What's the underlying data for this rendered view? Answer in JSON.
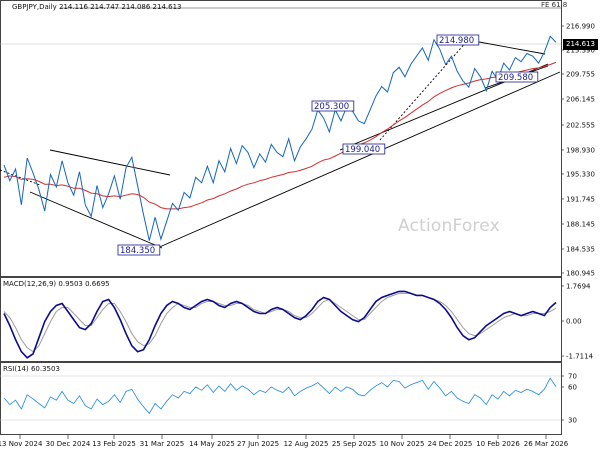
{
  "header": {
    "symbol_line": "GBPJPY,Daily  214.116 214.747 214.086 214.613",
    "macd_line": "MACD(12,26,9) 0.9503 0.6695",
    "rsi_line": "RSI(14) 60.3503"
  },
  "watermark": "ActionForex",
  "fib_label": "FE 61.8",
  "last_price": "214.613",
  "colors": {
    "price": "#1565c0",
    "ma": "#d32f2f",
    "macd": "#0b0b8c",
    "signal": "#9e9e9e",
    "rsi": "#1e88e5",
    "trend": "#000000",
    "label_border": "#1c1c8c"
  },
  "chart_data": [
    {
      "type": "line",
      "panel": "price",
      "title": "GBPJPY,Daily",
      "y_ticks": [
        "216.990",
        "213.390",
        "209.755",
        "206.145",
        "202.555",
        "198.930",
        "195.330",
        "191.745",
        "188.145",
        "184.535",
        "180.945"
      ],
      "ylim": [
        180.945,
        216.99
      ],
      "x_ticks": [
        "13 Nov 2024",
        "30 Dec 2024",
        "13 Feb 2025",
        "31 Mar 2025",
        "14 May 2025",
        "27 Jun 2025",
        "12 Aug 2025",
        "25 Sep 2025",
        "10 Nov 2025",
        "24 Dec 2025",
        "10 Feb 2026",
        "26 Mar 2026"
      ],
      "series": [
        {
          "values": [
            196.8,
            194.5,
            196.2,
            191.0,
            197.8,
            195.6,
            193.2,
            190.1,
            195.4,
            193.6,
            197.4,
            194.2,
            192.4,
            195.8,
            191.0,
            189.3,
            193.8,
            190.6,
            192.6,
            195.2,
            191.8,
            196.4,
            197.9,
            193.8,
            189.6,
            185.8,
            189.2,
            186.0,
            188.6,
            191.2,
            190.2,
            192.8,
            192.0,
            195.0,
            194.2,
            196.6,
            194.2,
            197.4,
            195.8,
            199.2,
            197.0,
            199.6,
            198.6,
            196.4,
            198.4,
            197.2,
            199.8,
            198.6,
            198.0,
            200.6,
            197.4,
            199.4,
            200.6,
            202.0,
            204.8,
            203.6,
            201.6,
            204.8,
            203.2,
            205.3,
            204.6,
            203.2,
            202.8,
            204.8,
            206.8,
            208.2,
            207.4,
            210.2,
            211.0,
            209.6,
            211.4,
            212.6,
            213.8,
            212.0,
            214.98,
            213.6,
            211.4,
            212.6,
            210.4,
            209.0,
            208.1,
            210.8,
            209.6,
            207.6,
            210.4,
            209.2,
            211.6,
            210.6,
            212.4,
            211.8,
            213.0,
            212.6,
            211.6,
            213.2,
            215.5,
            214.613
          ]
        },
        {
          "values": [
            195.0,
            195.2,
            195.1,
            194.7,
            194.8,
            194.7,
            194.4,
            194.0,
            194.0,
            193.8,
            193.9,
            193.7,
            193.4,
            193.4,
            193.1,
            192.7,
            192.6,
            192.3,
            192.2,
            192.3,
            192.2,
            192.4,
            192.6,
            192.5,
            192.1,
            191.4,
            191.1,
            190.6,
            190.4,
            190.4,
            190.4,
            190.6,
            190.7,
            191.0,
            191.3,
            191.7,
            191.9,
            192.3,
            192.6,
            193.0,
            193.3,
            193.7,
            194.0,
            194.2,
            194.5,
            194.7,
            195.0,
            195.2,
            195.4,
            195.7,
            195.8,
            196.0,
            196.3,
            196.6,
            197.1,
            197.5,
            197.7,
            198.1,
            198.5,
            199.0,
            199.4,
            199.7,
            200.0,
            200.4,
            200.9,
            201.5,
            202.0,
            202.6,
            203.2,
            203.7,
            204.3,
            204.9,
            205.5,
            206.0,
            206.7,
            207.2,
            207.6,
            208.0,
            208.3,
            208.5,
            208.7,
            209.0,
            209.2,
            209.3,
            209.5,
            209.6,
            209.8,
            210.0,
            210.2,
            210.4,
            210.6,
            210.8,
            210.9,
            211.1,
            211.4,
            211.7
          ]
        }
      ],
      "annotations": [
        "214.980",
        "205.300",
        "199.040",
        "209.580",
        "184.350"
      ]
    },
    {
      "type": "line",
      "panel": "macd",
      "title": "MACD(12,26,9)",
      "y_ticks": [
        "1.7694",
        "0.00",
        "-1.7114"
      ],
      "ylim": [
        -1.7114,
        1.7694
      ],
      "series": [
        {
          "values": [
            0.4,
            -0.2,
            -0.9,
            -1.5,
            -1.8,
            -1.6,
            -0.8,
            0.0,
            0.5,
            0.8,
            0.9,
            0.5,
            0.1,
            -0.3,
            -0.4,
            -0.1,
            0.5,
            1.0,
            1.1,
            0.7,
            0.1,
            -0.6,
            -1.2,
            -1.5,
            -1.4,
            -0.9,
            -0.2,
            0.4,
            0.8,
            1.0,
            0.9,
            0.7,
            0.6,
            0.8,
            1.0,
            1.1,
            1.0,
            0.8,
            0.7,
            0.9,
            1.0,
            0.9,
            0.7,
            0.5,
            0.4,
            0.4,
            0.6,
            0.7,
            0.6,
            0.4,
            0.2,
            0.1,
            0.3,
            0.6,
            1.0,
            1.2,
            1.1,
            0.8,
            0.5,
            0.3,
            0.1,
            0.0,
            0.2,
            0.6,
            1.0,
            1.2,
            1.3,
            1.4,
            1.5,
            1.5,
            1.4,
            1.3,
            1.3,
            1.2,
            1.1,
            0.9,
            0.6,
            0.2,
            -0.3,
            -0.7,
            -0.9,
            -0.8,
            -0.5,
            -0.2,
            0.0,
            0.2,
            0.4,
            0.5,
            0.4,
            0.3,
            0.4,
            0.5,
            0.4,
            0.3,
            0.7,
            0.9503
          ]
        },
        {
          "values": [
            0.5,
            0.2,
            -0.3,
            -0.9,
            -1.3,
            -1.5,
            -1.2,
            -0.6,
            0.0,
            0.5,
            0.7,
            0.7,
            0.4,
            0.1,
            -0.2,
            -0.2,
            0.2,
            0.6,
            0.9,
            0.9,
            0.5,
            0.0,
            -0.6,
            -1.0,
            -1.2,
            -1.1,
            -0.7,
            -0.1,
            0.4,
            0.7,
            0.9,
            0.8,
            0.7,
            0.7,
            0.9,
            1.0,
            1.0,
            0.9,
            0.8,
            0.8,
            0.9,
            0.9,
            0.8,
            0.6,
            0.5,
            0.4,
            0.5,
            0.6,
            0.6,
            0.5,
            0.3,
            0.2,
            0.2,
            0.4,
            0.7,
            1.0,
            1.1,
            0.9,
            0.7,
            0.5,
            0.3,
            0.1,
            0.1,
            0.4,
            0.7,
            1.0,
            1.2,
            1.3,
            1.4,
            1.4,
            1.4,
            1.3,
            1.3,
            1.2,
            1.1,
            1.0,
            0.8,
            0.5,
            0.1,
            -0.3,
            -0.6,
            -0.7,
            -0.6,
            -0.4,
            -0.2,
            0.0,
            0.2,
            0.3,
            0.4,
            0.3,
            0.3,
            0.4,
            0.4,
            0.4,
            0.5,
            0.6695
          ]
        }
      ]
    },
    {
      "type": "line",
      "panel": "rsi",
      "title": "RSI(14)",
      "y_ticks": [
        "70",
        "60",
        "30"
      ],
      "ylim": [
        20,
        80
      ],
      "series": [
        {
          "values": [
            50,
            44,
            48,
            40,
            53,
            49,
            45,
            41,
            51,
            48,
            56,
            48,
            45,
            52,
            43,
            40,
            49,
            44,
            47,
            53,
            46,
            56,
            58,
            49,
            42,
            36,
            45,
            40,
            47,
            53,
            50,
            56,
            54,
            60,
            57,
            62,
            55,
            61,
            56,
            63,
            57,
            61,
            58,
            53,
            57,
            55,
            60,
            57,
            55,
            60,
            52,
            56,
            59,
            61,
            64,
            59,
            54,
            60,
            56,
            60,
            58,
            53,
            52,
            57,
            61,
            64,
            60,
            66,
            65,
            59,
            62,
            64,
            66,
            58,
            65,
            59,
            52,
            56,
            50,
            47,
            45,
            53,
            50,
            44,
            53,
            49,
            56,
            52,
            57,
            55,
            58,
            56,
            53,
            58,
            68,
            60.35
          ]
        }
      ]
    }
  ]
}
